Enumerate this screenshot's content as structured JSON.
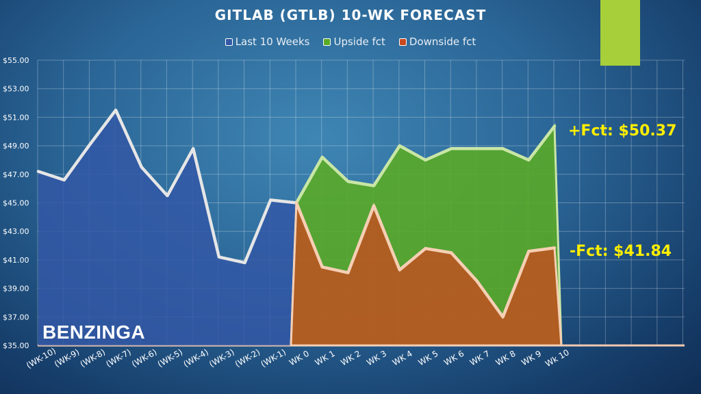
{
  "colors": {
    "last10": "#3358a6",
    "last10_line": "#e6e6e6",
    "upside": "#5aab24",
    "upside_line": "#c9e6a6",
    "downside": "#c94a1f",
    "downside_line": "#f6cfb4",
    "accent": "#a7cf39",
    "label": "#ffee00"
  },
  "brand": "BENZINGA",
  "chart_data": {
    "type": "area",
    "title": "GITLAB (GTLB) 10-WK FORECAST",
    "categories": [
      "(WK-10)",
      "(WK-9)",
      "(WK-8)",
      "(WK-7)",
      "(WK-6)",
      "(WK-5)",
      "(WK-4)",
      "(WK-3)",
      "(WK-2)",
      "(WK-1)",
      "WK 0",
      "WK 1",
      "WK 2",
      "WK 3",
      "WK 4",
      "WK 5",
      "WK 6",
      "WK 7",
      "WK 8",
      "WK 9",
      "Wk 10"
    ],
    "ylim": [
      35,
      55
    ],
    "yticks": [
      "$35.00",
      "$37.00",
      "$39.00",
      "$41.00",
      "$43.00",
      "$45.00",
      "$47.00",
      "$49.00",
      "$51.00",
      "$53.00",
      "$55.00"
    ],
    "grid": true,
    "legend_position": "top",
    "series": [
      {
        "name": "Last 10 Weeks",
        "values": [
          47.2,
          46.6,
          49.1,
          51.5,
          47.5,
          45.5,
          48.8,
          41.2,
          40.8,
          45.2,
          45.0,
          null,
          null,
          null,
          null,
          null,
          null,
          null,
          null,
          null,
          null
        ]
      },
      {
        "name": "Upside fct",
        "values": [
          null,
          null,
          null,
          null,
          null,
          null,
          null,
          null,
          null,
          null,
          45.0,
          48.2,
          46.5,
          46.2,
          49.0,
          48.0,
          48.8,
          48.8,
          48.8,
          48.0,
          50.37
        ]
      },
      {
        "name": "Downside fct",
        "values": [
          null,
          null,
          null,
          null,
          null,
          null,
          null,
          null,
          null,
          null,
          45.0,
          40.5,
          40.1,
          44.8,
          40.3,
          41.8,
          41.5,
          39.5,
          37.0,
          41.6,
          41.84
        ]
      }
    ],
    "annotations": [
      "+Fct: $50.37",
      "-Fct: $41.84"
    ]
  }
}
